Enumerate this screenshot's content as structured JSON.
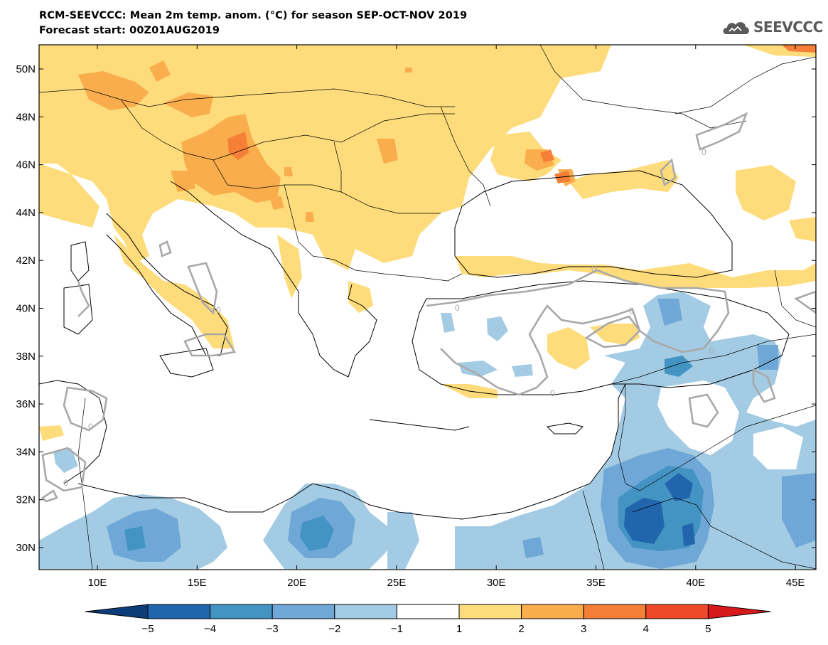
{
  "header": {
    "title_line1": "RCM-SEEVCCC: Mean 2m temp. anom. (°C) for season SEP-OCT-NOV 2019",
    "title_line2": "Forecast start: 00Z01AUG2019"
  },
  "logo": {
    "text": "SEEVCCC",
    "icon": "cloud-icon"
  },
  "map": {
    "lat_labels": [
      "50N",
      "48N",
      "46N",
      "44N",
      "42N",
      "40N",
      "38N",
      "36N",
      "34N",
      "32N",
      "30N"
    ],
    "lon_labels": [
      "10E",
      "15E",
      "20E",
      "25E",
      "30E",
      "35E",
      "40E",
      "45E"
    ],
    "contour_label": "0",
    "extent": {
      "lon": [
        7,
        46
      ],
      "lat": [
        29,
        51
      ]
    }
  },
  "colorbar": {
    "tick_labels": [
      "−5",
      "−4",
      "−3",
      "−2",
      "−1",
      "1",
      "2",
      "3",
      "4",
      "5"
    ],
    "colors": [
      "#0c3d78",
      "#2166ac",
      "#4393c3",
      "#6fa8d6",
      "#a3cbe3",
      "#ffffff",
      "#fedc7b",
      "#f9ad4c",
      "#f57f36",
      "#ee4a2a",
      "#d7191c"
    ]
  }
}
